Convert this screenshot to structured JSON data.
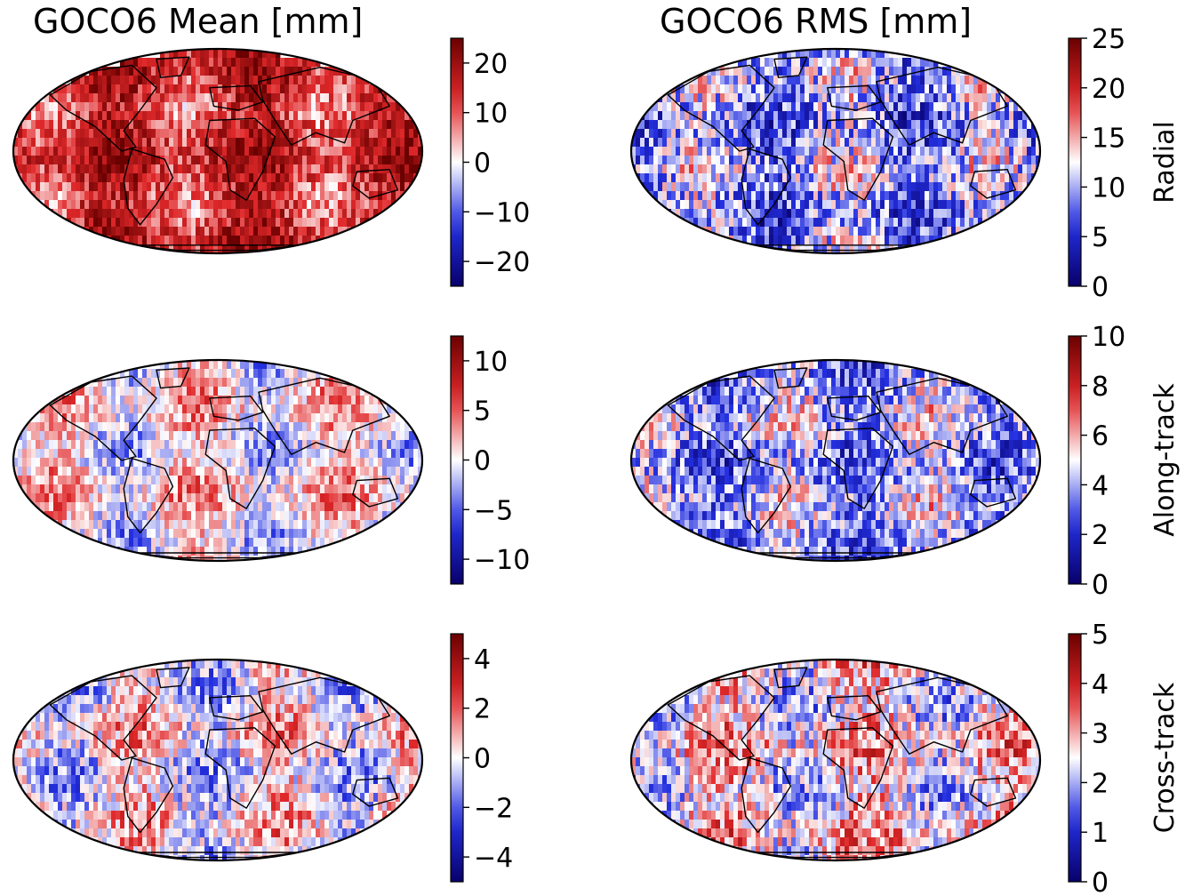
{
  "figure": {
    "column_titles": [
      "GOCO6 Mean [mm]",
      "GOCO6 RMS [mm]"
    ],
    "row_labels": [
      "Radial",
      "Along-track",
      "Cross-track"
    ],
    "colormap": [
      "#08006b",
      "#2430e0",
      "#ffffff",
      "#e0282a",
      "#6b0000"
    ]
  },
  "chart_data": [
    {
      "type": "heatmap",
      "projection": "mollweide",
      "column": "GOCO6 Mean [mm]",
      "row": "Radial",
      "colorbar": {
        "vmin": -25,
        "vmax": 25,
        "ticks": [
          -20,
          -10,
          0,
          10,
          20
        ],
        "tick_labels": [
          "−20",
          "−10",
          "0",
          "10",
          "20"
        ]
      }
    },
    {
      "type": "heatmap",
      "projection": "mollweide",
      "column": "GOCO6 RMS [mm]",
      "row": "Radial",
      "colorbar": {
        "vmin": 0,
        "vmax": 25,
        "ticks": [
          0,
          5,
          10,
          15,
          20,
          25
        ],
        "tick_labels": [
          "0",
          "5",
          "10",
          "15",
          "20",
          "25"
        ],
        "label": "Radial"
      }
    },
    {
      "type": "heatmap",
      "projection": "mollweide",
      "column": "GOCO6 Mean [mm]",
      "row": "Along-track",
      "colorbar": {
        "vmin": -12.5,
        "vmax": 12.5,
        "ticks": [
          -10,
          -5,
          0,
          5,
          10
        ],
        "tick_labels": [
          "−10",
          "−5",
          "0",
          "5",
          "10"
        ]
      }
    },
    {
      "type": "heatmap",
      "projection": "mollweide",
      "column": "GOCO6 RMS [mm]",
      "row": "Along-track",
      "colorbar": {
        "vmin": 0,
        "vmax": 10,
        "ticks": [
          0,
          2,
          4,
          6,
          8,
          10
        ],
        "tick_labels": [
          "0",
          "2",
          "4",
          "6",
          "8",
          "10"
        ],
        "label": "Along-track"
      }
    },
    {
      "type": "heatmap",
      "projection": "mollweide",
      "column": "GOCO6 Mean [mm]",
      "row": "Cross-track",
      "colorbar": {
        "vmin": -5,
        "vmax": 5,
        "ticks": [
          -4,
          -2,
          0,
          2,
          4
        ],
        "tick_labels": [
          "−4",
          "−2",
          "0",
          "2",
          "4"
        ]
      }
    },
    {
      "type": "heatmap",
      "projection": "mollweide",
      "column": "GOCO6 RMS [mm]",
      "row": "Cross-track",
      "colorbar": {
        "vmin": 0,
        "vmax": 5,
        "ticks": [
          0,
          1,
          2,
          3,
          4,
          5
        ],
        "tick_labels": [
          "0",
          "1",
          "2",
          "3",
          "4",
          "5"
        ],
        "label": "Cross-track"
      }
    }
  ]
}
